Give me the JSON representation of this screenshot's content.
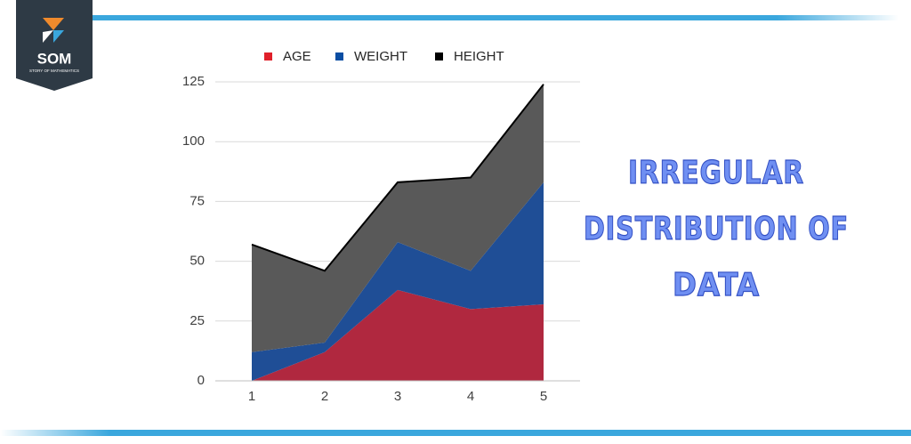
{
  "logo": {
    "text": "SOM",
    "subtitle": "STORY OF MATHEMATICS"
  },
  "heading": {
    "lines": [
      "IRREGULAR",
      "DISTRIBUTION OF",
      "DATA"
    ]
  },
  "chart_data": {
    "type": "stacked_area",
    "categories": [
      "1",
      "2",
      "3",
      "4",
      "5"
    ],
    "series": [
      {
        "name": "AGE",
        "color": "#b0283f",
        "legend_color": "#e0202a",
        "values": [
          0,
          12,
          38,
          30,
          32
        ]
      },
      {
        "name": "WEIGHT",
        "color": "#1f4e96",
        "legend_color": "#0a4ea3",
        "values": [
          12,
          4,
          20,
          16,
          51
        ]
      },
      {
        "name": "HEIGHT",
        "color": "#595959",
        "legend_color": "#000000",
        "values": [
          45,
          30,
          25,
          39,
          41
        ]
      }
    ],
    "ylim": [
      0,
      125
    ],
    "yticks": [
      0,
      25,
      50,
      75,
      100,
      125
    ],
    "grid": true,
    "legend": "top"
  }
}
